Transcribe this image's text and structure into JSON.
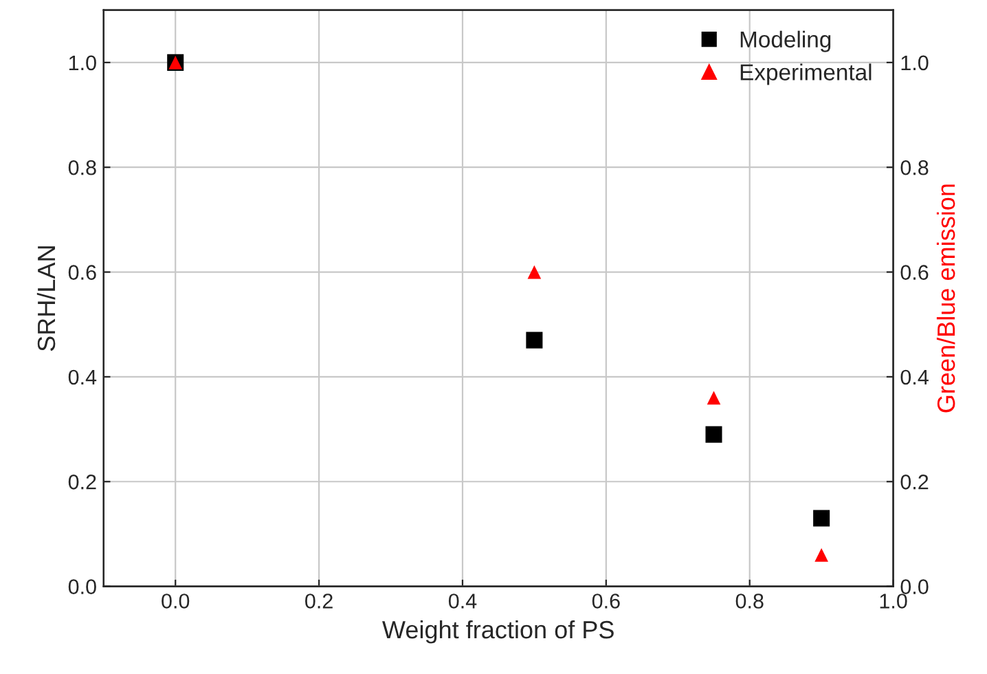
{
  "chart_data": {
    "type": "scatter",
    "xlabel": "Weight fraction of PS",
    "ylabel": "SRH/LAN",
    "y2label": "Green/Blue emission",
    "x": [
      0,
      0.5,
      0.75,
      0.9
    ],
    "series": [
      {
        "name": "Modeling",
        "color": "#000000",
        "marker": "square",
        "values": [
          1.0,
          0.47,
          0.29,
          0.13
        ]
      },
      {
        "name": "Experimental",
        "color": "#ff0000",
        "marker": "triangle",
        "axis": "y2",
        "values": [
          1.0,
          0.6,
          0.36,
          0.06
        ]
      }
    ],
    "xlim": [
      -0.1,
      1.0
    ],
    "xticks": [
      {
        "value": 0,
        "label": "0.0"
      },
      0.2,
      0.4,
      0.6,
      0.8,
      {
        "value": 1,
        "label": "1.0"
      }
    ],
    "ylim": [
      0,
      1.1
    ],
    "yticks": [
      {
        "value": 0,
        "label": "0.0"
      },
      0.2,
      0.4,
      0.6,
      0.8,
      {
        "value": 1,
        "label": "1.0"
      }
    ],
    "y2lim": [
      0,
      1.1
    ],
    "y2ticks": [
      {
        "value": 0,
        "label": "0.0"
      },
      0.2,
      0.4,
      0.6,
      0.8,
      {
        "value": 1,
        "label": "1.0"
      }
    ],
    "grid": true,
    "legend": "top right"
  }
}
